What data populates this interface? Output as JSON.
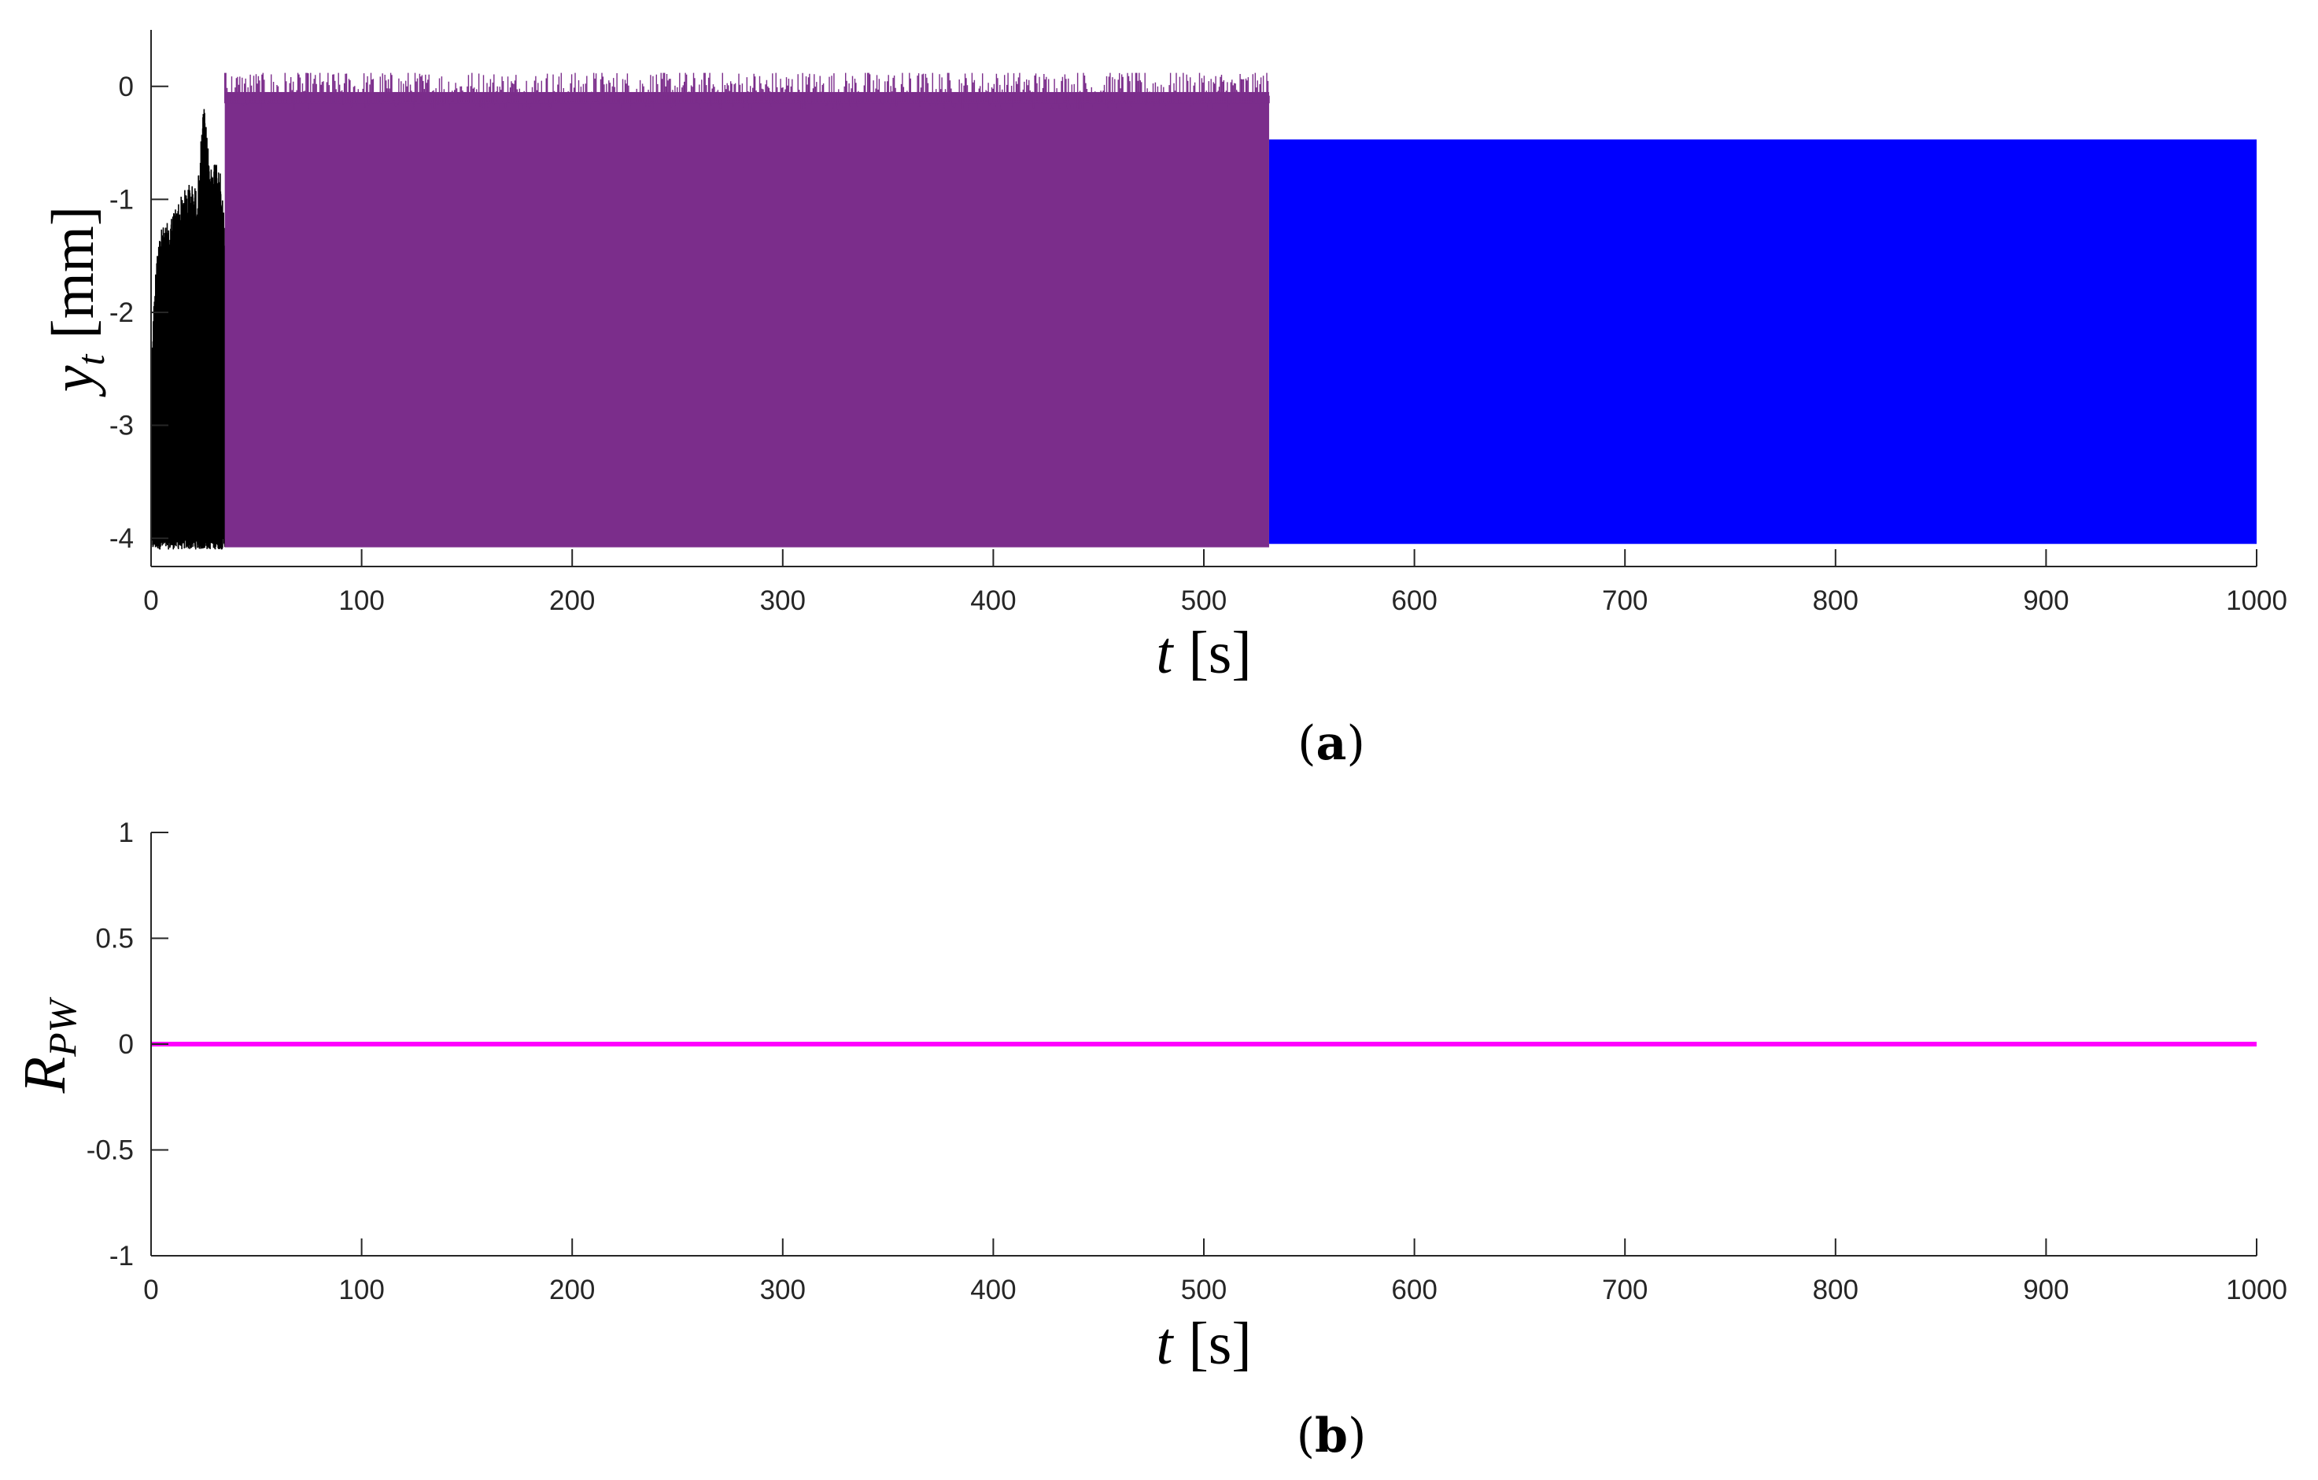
{
  "chart_data": [
    {
      "panel": "a",
      "type": "line",
      "caption": "a",
      "xlabel": {
        "var": "t",
        "unit": "[s]"
      },
      "ylabel": {
        "var": "y",
        "sub": "t",
        "unit": "[mm]"
      },
      "xlim": [
        0,
        1000
      ],
      "ylim": [
        -4.25,
        0.5
      ],
      "xticks": [
        0,
        100,
        200,
        300,
        400,
        500,
        600,
        700,
        800,
        900,
        1000
      ],
      "yticks": [
        0,
        -1,
        -2,
        -3,
        -4
      ],
      "grid": false,
      "series": [
        {
          "color": "#000000",
          "x_range": [
            0,
            35
          ],
          "upper_envelope": [
            [
              0,
              -2.4
            ],
            [
              3,
              -1.3
            ],
            [
              8,
              -1.2
            ],
            [
              13,
              -1.0
            ],
            [
              18,
              -0.85
            ],
            [
              22,
              -0.9
            ],
            [
              25,
              -0.15
            ],
            [
              28,
              -0.7
            ],
            [
              32,
              -0.6
            ],
            [
              35,
              -1.2
            ]
          ],
          "lower": -4.1
        },
        {
          "color": "#7B2D8B",
          "x_range": [
            35,
            531
          ],
          "upper": -0.05,
          "upper_peak": 0.12,
          "lower": -4.08
        },
        {
          "color": "#0000FF",
          "x_range": [
            531,
            1000
          ],
          "upper": -0.47,
          "lower": -4.05
        }
      ]
    },
    {
      "panel": "b",
      "type": "line",
      "caption": "b",
      "xlabel": {
        "var": "t",
        "unit": "[s]"
      },
      "ylabel": {
        "var": "R",
        "sub": "PW"
      },
      "xlim": [
        0,
        1000
      ],
      "ylim": [
        -1,
        1
      ],
      "xticks": [
        0,
        100,
        200,
        300,
        400,
        500,
        600,
        700,
        800,
        900,
        1000
      ],
      "yticks": [
        1,
        0.5,
        0,
        -0.5,
        -1
      ],
      "grid": false,
      "series": [
        {
          "color": "#FF00FF",
          "x": [
            0,
            1000
          ],
          "y": [
            0,
            0
          ]
        }
      ]
    }
  ]
}
